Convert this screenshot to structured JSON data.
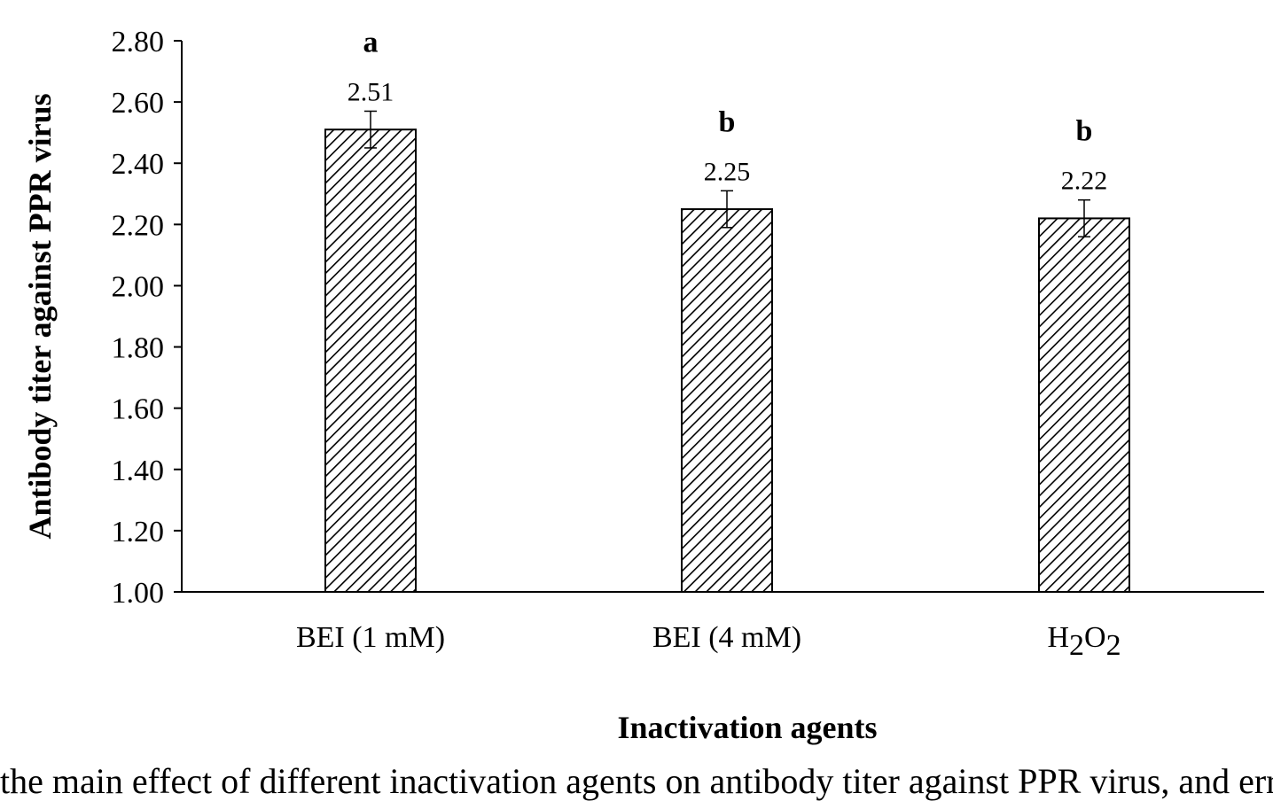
{
  "chart_data": {
    "type": "bar",
    "categories": [
      "BEI (1 mM)",
      "BEI (4 mM)",
      "H2O2"
    ],
    "category_display": [
      {
        "text": "BEI (1 mM)"
      },
      {
        "text": "BEI (4 mM)"
      },
      {
        "parts": [
          "H",
          "2",
          "O",
          "2"
        ]
      }
    ],
    "values": [
      2.51,
      2.25,
      2.22
    ],
    "value_labels": [
      "2.51",
      "2.25",
      "2.22"
    ],
    "error": [
      0.06,
      0.06,
      0.06
    ],
    "significance": [
      "a",
      "b",
      "b"
    ],
    "title": "",
    "xlabel": "Inactivation agents",
    "ylabel": "Antibody titer against PPR virus",
    "ylim": [
      1.0,
      2.8
    ],
    "yticks": [
      "1.00",
      "1.20",
      "1.40",
      "1.60",
      "1.80",
      "2.00",
      "2.20",
      "2.40",
      "2.60",
      "2.80"
    ],
    "grid": false,
    "legend": "none",
    "bar_fill": "diagonal-hatch",
    "colors": {
      "bar_stroke": "#000000",
      "hatch": "#000000",
      "background": "#ffffff"
    }
  },
  "caption": "the main effect of different inactivation agents on antibody titer against PPR virus, and error bars indicate"
}
